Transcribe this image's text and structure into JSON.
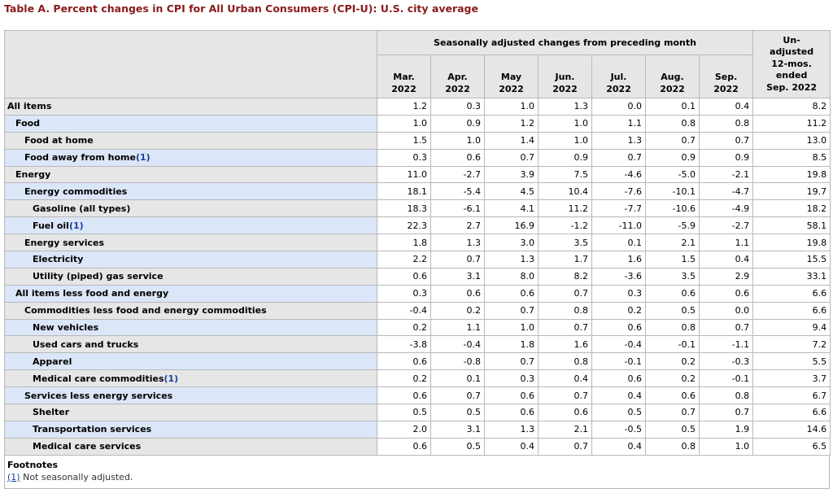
{
  "title": "Table A. Percent changes in CPI for All Urban Consumers (CPI-U): U.S. city average",
  "header": {
    "group_label": "Seasonally adjusted changes from preceding month",
    "unadjusted_label": "Un-\nadjusted\n12-mos.\nended\nSep. 2022",
    "months": [
      {
        "line1": "Mar.",
        "line2": "2022"
      },
      {
        "line1": "Apr.",
        "line2": "2022"
      },
      {
        "line1": "May",
        "line2": "2022"
      },
      {
        "line1": "Jun.",
        "line2": "2022"
      },
      {
        "line1": "Jul.",
        "line2": "2022"
      },
      {
        "line1": "Aug.",
        "line2": "2022"
      },
      {
        "line1": "Sep.",
        "line2": "2022"
      }
    ]
  },
  "rows": [
    {
      "label": "All items",
      "level": 0,
      "footnote": "",
      "values": [
        "1.2",
        "0.3",
        "1.0",
        "1.3",
        "0.0",
        "0.1",
        "0.4",
        "8.2"
      ]
    },
    {
      "label": "Food",
      "level": 1,
      "footnote": "",
      "values": [
        "1.0",
        "0.9",
        "1.2",
        "1.0",
        "1.1",
        "0.8",
        "0.8",
        "11.2"
      ]
    },
    {
      "label": "Food at home",
      "level": 2,
      "footnote": "",
      "values": [
        "1.5",
        "1.0",
        "1.4",
        "1.0",
        "1.3",
        "0.7",
        "0.7",
        "13.0"
      ]
    },
    {
      "label": "Food away from home",
      "level": 2,
      "footnote": "(1)",
      "values": [
        "0.3",
        "0.6",
        "0.7",
        "0.9",
        "0.7",
        "0.9",
        "0.9",
        "8.5"
      ]
    },
    {
      "label": "Energy",
      "level": 1,
      "footnote": "",
      "values": [
        "11.0",
        "-2.7",
        "3.9",
        "7.5",
        "-4.6",
        "-5.0",
        "-2.1",
        "19.8"
      ]
    },
    {
      "label": "Energy commodities",
      "level": 2,
      "footnote": "",
      "values": [
        "18.1",
        "-5.4",
        "4.5",
        "10.4",
        "-7.6",
        "-10.1",
        "-4.7",
        "19.7"
      ]
    },
    {
      "label": "Gasoline (all types)",
      "level": 3,
      "footnote": "",
      "values": [
        "18.3",
        "-6.1",
        "4.1",
        "11.2",
        "-7.7",
        "-10.6",
        "-4.9",
        "18.2"
      ]
    },
    {
      "label": "Fuel oil",
      "level": 3,
      "footnote": "(1)",
      "values": [
        "22.3",
        "2.7",
        "16.9",
        "-1.2",
        "-11.0",
        "-5.9",
        "-2.7",
        "58.1"
      ]
    },
    {
      "label": "Energy services",
      "level": 2,
      "footnote": "",
      "values": [
        "1.8",
        "1.3",
        "3.0",
        "3.5",
        "0.1",
        "2.1",
        "1.1",
        "19.8"
      ]
    },
    {
      "label": "Electricity",
      "level": 3,
      "footnote": "",
      "values": [
        "2.2",
        "0.7",
        "1.3",
        "1.7",
        "1.6",
        "1.5",
        "0.4",
        "15.5"
      ]
    },
    {
      "label": "Utility (piped) gas service",
      "level": 3,
      "footnote": "",
      "values": [
        "0.6",
        "3.1",
        "8.0",
        "8.2",
        "-3.6",
        "3.5",
        "2.9",
        "33.1"
      ]
    },
    {
      "label": "All items less food and energy",
      "level": 1,
      "footnote": "",
      "values": [
        "0.3",
        "0.6",
        "0.6",
        "0.7",
        "0.3",
        "0.6",
        "0.6",
        "6.6"
      ]
    },
    {
      "label": "Commodities less food and energy commodities",
      "level": 2,
      "footnote": "",
      "values": [
        "-0.4",
        "0.2",
        "0.7",
        "0.8",
        "0.2",
        "0.5",
        "0.0",
        "6.6"
      ]
    },
    {
      "label": "New vehicles",
      "level": 3,
      "footnote": "",
      "values": [
        "0.2",
        "1.1",
        "1.0",
        "0.7",
        "0.6",
        "0.8",
        "0.7",
        "9.4"
      ]
    },
    {
      "label": "Used cars and trucks",
      "level": 3,
      "footnote": "",
      "values": [
        "-3.8",
        "-0.4",
        "1.8",
        "1.6",
        "-0.4",
        "-0.1",
        "-1.1",
        "7.2"
      ]
    },
    {
      "label": "Apparel",
      "level": 3,
      "footnote": "",
      "values": [
        "0.6",
        "-0.8",
        "0.7",
        "0.8",
        "-0.1",
        "0.2",
        "-0.3",
        "5.5"
      ]
    },
    {
      "label": "Medical care commodities",
      "level": 3,
      "footnote": "(1)",
      "values": [
        "0.2",
        "0.1",
        "0.3",
        "0.4",
        "0.6",
        "0.2",
        "-0.1",
        "3.7"
      ]
    },
    {
      "label": "Services less energy services",
      "level": 2,
      "footnote": "",
      "values": [
        "0.6",
        "0.7",
        "0.6",
        "0.7",
        "0.4",
        "0.6",
        "0.8",
        "6.7"
      ]
    },
    {
      "label": "Shelter",
      "level": 3,
      "footnote": "",
      "values": [
        "0.5",
        "0.5",
        "0.6",
        "0.6",
        "0.5",
        "0.7",
        "0.7",
        "6.6"
      ]
    },
    {
      "label": "Transportation services",
      "level": 3,
      "footnote": "",
      "values": [
        "2.0",
        "3.1",
        "1.3",
        "2.1",
        "-0.5",
        "0.5",
        "1.9",
        "14.6"
      ]
    },
    {
      "label": "Medical care services",
      "level": 3,
      "footnote": "",
      "values": [
        "0.6",
        "0.5",
        "0.4",
        "0.7",
        "0.4",
        "0.8",
        "1.0",
        "6.5"
      ]
    }
  ],
  "footnotes": {
    "title": "Footnotes",
    "items": [
      {
        "ref": "(1)",
        "text": " Not seasonally adjusted."
      }
    ]
  }
}
